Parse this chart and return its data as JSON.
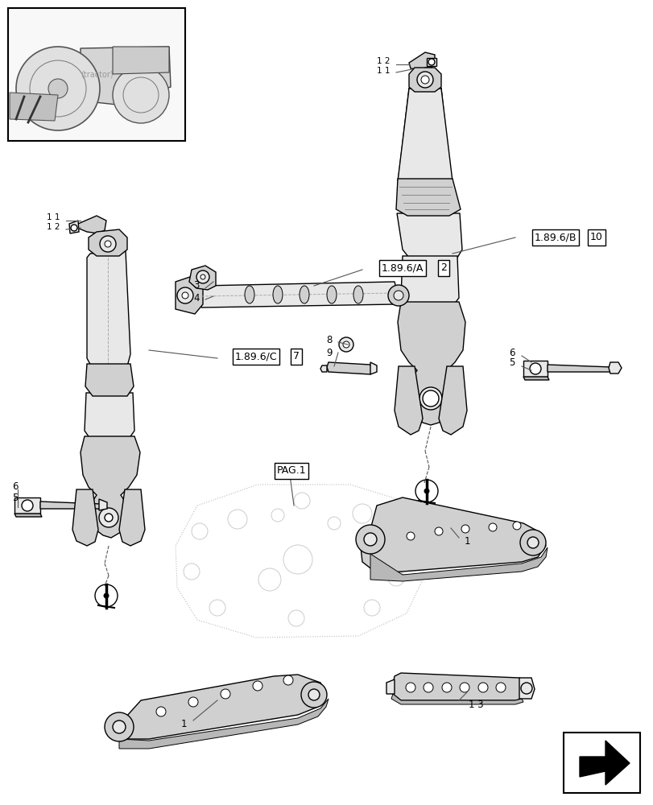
{
  "bg_color": "#ffffff",
  "lc": "#000000",
  "gray1": "#d0d0d0",
  "gray2": "#e8e8e8",
  "gray3": "#b8b8b8",
  "gray_ghost": "#c8c8c8",
  "figsize": [
    8.12,
    10.0
  ],
  "dpi": 100,
  "labels": {
    "ref_A": "1.89.6/A",
    "ref_B": "1.89.6/B",
    "ref_C": "1.89.6/C",
    "ref_PAG": "PAG.1",
    "num_A": "2",
    "num_B": "10",
    "num_C": "7"
  }
}
